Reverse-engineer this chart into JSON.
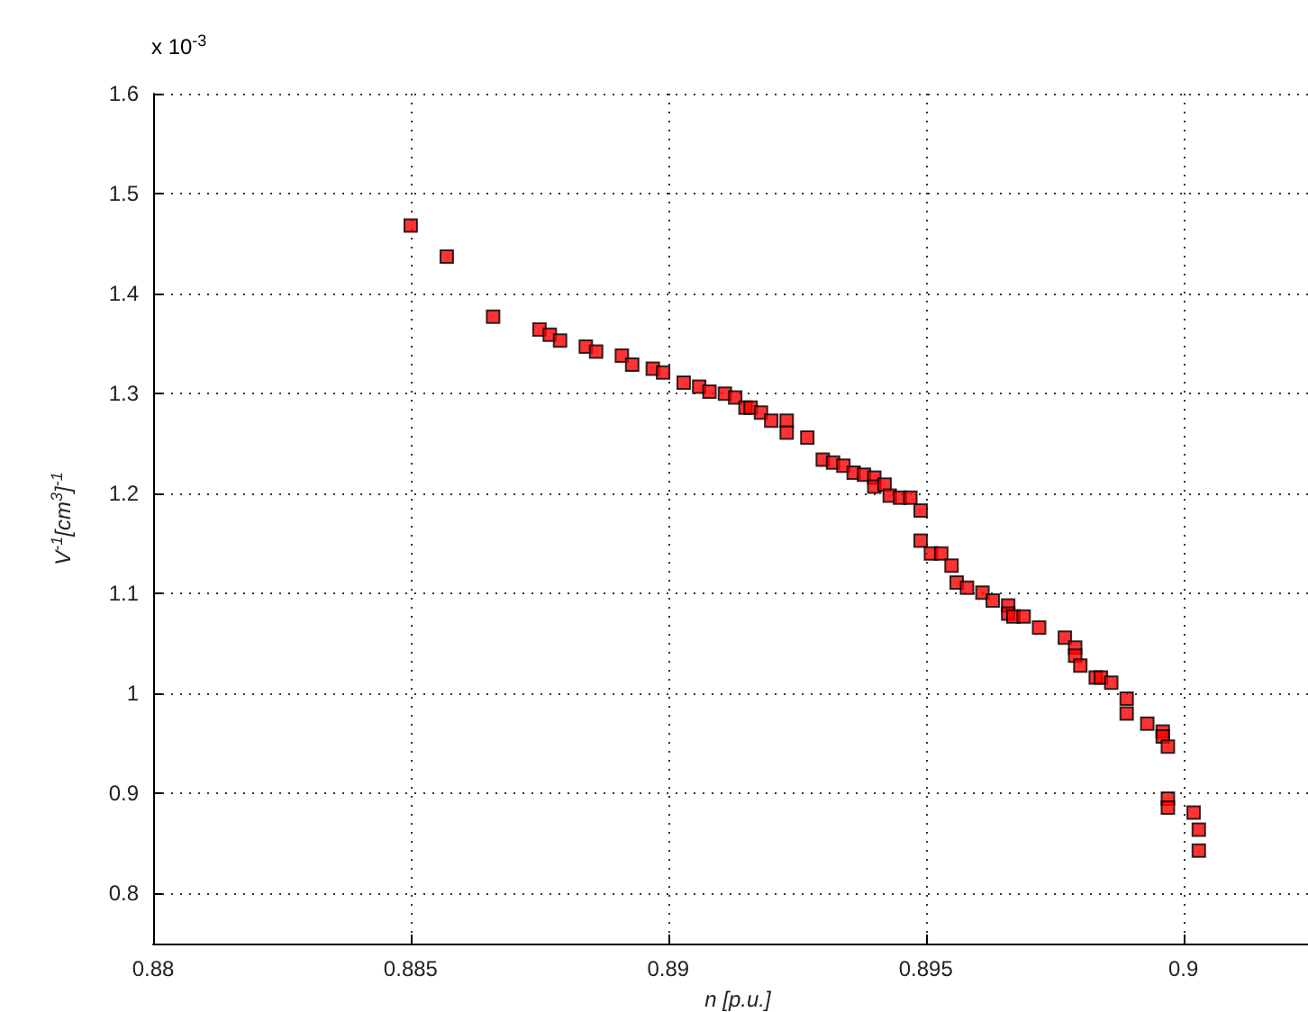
{
  "chart_data": {
    "type": "scatter",
    "xlabel": "n [p.u.]",
    "ylabel": "V$^{-1}$[cm$^{3}$]$^{-1}$",
    "annotations": [
      "x 10$^{-3}$"
    ],
    "xlim": [
      0.88,
      0.9027
    ],
    "xticks": [
      0.88,
      0.885,
      0.89,
      0.895,
      0.9
    ],
    "ylim": [
      0.75,
      1.6
    ],
    "yticks": [
      0.8,
      0.9,
      1,
      1.1,
      1.2,
      1.3,
      1.4,
      1.5,
      1.6
    ],
    "grid": true,
    "marker": "square",
    "series": [
      {
        "color": "#ff0000",
        "x": [
          0.885,
          0.8857,
          0.8866,
          0.8875,
          0.8877,
          0.8879,
          0.8884,
          0.8886,
          0.8891,
          0.8893,
          0.8897,
          0.8899,
          0.8903,
          0.8906,
          0.8908,
          0.8911,
          0.8913,
          0.8915,
          0.8916,
          0.8918,
          0.892,
          0.8923,
          0.8923,
          0.8927,
          0.893,
          0.8932,
          0.8934,
          0.8936,
          0.8938,
          0.894,
          0.894,
          0.8942,
          0.8943,
          0.8945,
          0.8947,
          0.8949,
          0.8949,
          0.8951,
          0.8953,
          0.8955,
          0.8956,
          0.8958,
          0.8961,
          0.8963,
          0.8966,
          0.8966,
          0.8967,
          0.8969,
          0.8972,
          0.8977,
          0.8979,
          0.8979,
          0.898,
          0.8983,
          0.8984,
          0.8986,
          0.8989,
          0.8989,
          0.8993,
          0.8996,
          0.8996,
          0.8997,
          0.8997,
          0.8997,
          0.9002,
          0.9003,
          0.9003
        ],
        "values": [
          1.468,
          1.437,
          1.377,
          1.364,
          1.359,
          1.353,
          1.347,
          1.342,
          1.338,
          1.329,
          1.325,
          1.321,
          1.311,
          1.307,
          1.302,
          1.3,
          1.296,
          1.286,
          1.286,
          1.281,
          1.273,
          1.273,
          1.261,
          1.256,
          1.234,
          1.231,
          1.228,
          1.221,
          1.219,
          1.216,
          1.207,
          1.209,
          1.198,
          1.196,
          1.196,
          1.183,
          1.153,
          1.14,
          1.14,
          1.128,
          1.111,
          1.106,
          1.101,
          1.093,
          1.088,
          1.08,
          1.077,
          1.077,
          1.066,
          1.056,
          1.046,
          1.038,
          1.028,
          1.016,
          1.016,
          1.011,
          0.995,
          0.98,
          0.97,
          0.962,
          0.957,
          0.947,
          0.895,
          0.886,
          0.881,
          0.864,
          0.843
        ]
      }
    ]
  }
}
